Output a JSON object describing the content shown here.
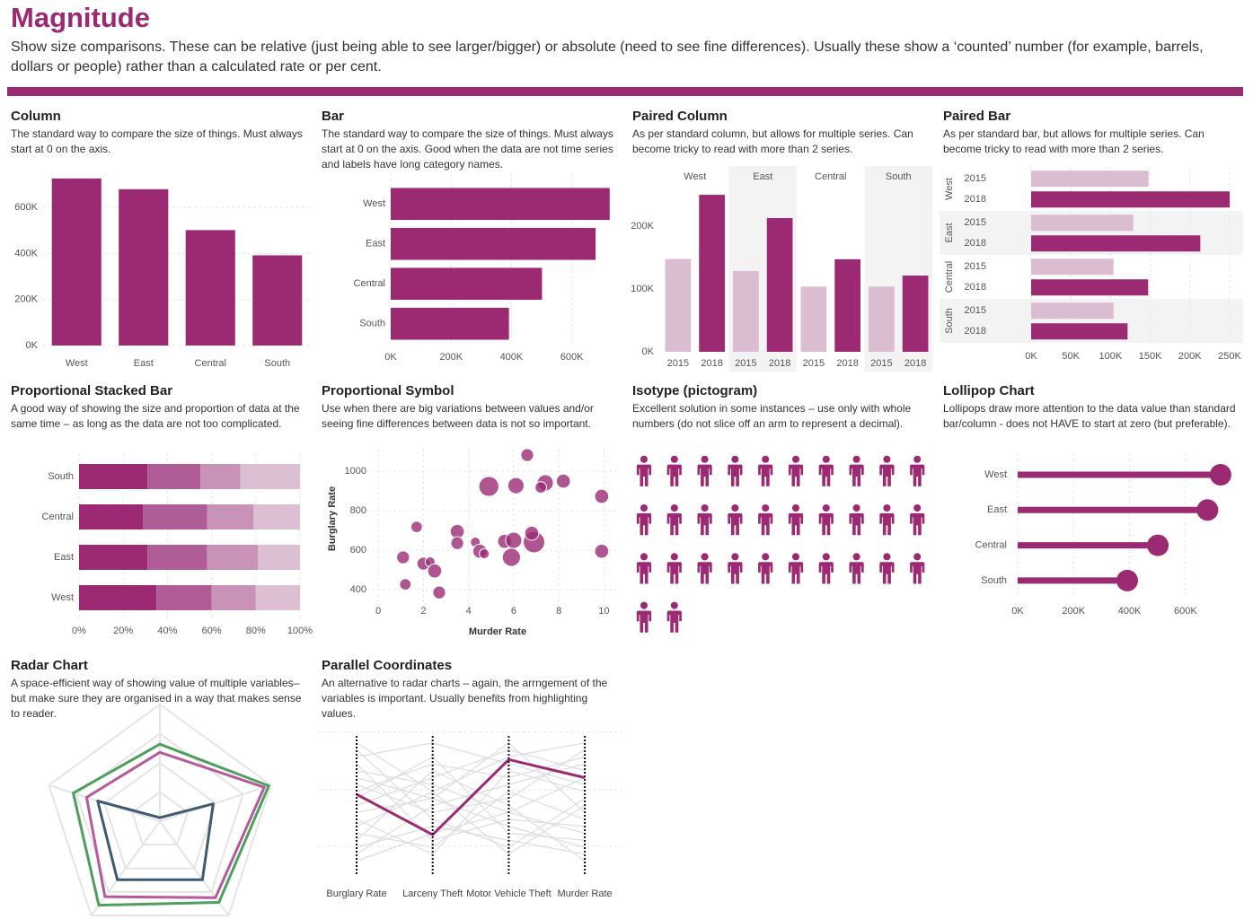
{
  "header": {
    "title": "Magnitude",
    "description": "Show size comparisons. These can be relative (just being able to see larger/bigger) or absolute (need to see fine differences). Usually these show a ‘counted’ number (for example, barrels, dollars or people) rather than a calculated rate or per cent."
  },
  "chart_data": [
    {
      "type": "column",
      "title": "Column",
      "description": "The standard way to compare the size of things. Must always start at 0 on the axis.",
      "categories": [
        "West",
        "East",
        "Central",
        "South"
      ],
      "values": [
        725458,
        678781,
        501240,
        391722
      ],
      "color": "#9b2a73",
      "ylim": [
        0,
        760000
      ],
      "yticks": [
        {
          "value": 0,
          "label": "0K"
        },
        {
          "value": 200000,
          "label": "200K"
        },
        {
          "value": 400000,
          "label": "400K"
        },
        {
          "value": 600000,
          "label": "600K"
        }
      ],
      "grid": true
    },
    {
      "type": "bar",
      "title": "Bar",
      "description": "The standard way to compare the size of things. Must always start at 0 on the axis. Good when the data are not time series and labels have long category names.",
      "categories": [
        "West",
        "East",
        "Central",
        "South"
      ],
      "values": [
        725458,
        678781,
        501240,
        391722
      ],
      "color": "#9b2a73",
      "xlim": [
        0,
        735000
      ],
      "xticks": [
        {
          "value": 0,
          "label": "0K"
        },
        {
          "value": 200000,
          "label": "200K"
        },
        {
          "value": 400000,
          "label": "400K"
        },
        {
          "value": 600000,
          "label": "600K"
        }
      ],
      "grid": true
    },
    {
      "type": "paired_column",
      "title": "Paired Column",
      "description": "As per standard column, but allows for multiple series. Can become tricky to read with more than 2 series.",
      "categories": [
        "West",
        "East",
        "Central",
        "South"
      ],
      "series": [
        {
          "name": "2015",
          "color": "#dbbdd1",
          "values": [
            147883,
            128680,
            103838,
            103846
          ]
        },
        {
          "name": "2018",
          "color": "#9b2a73",
          "values": [
            250128,
            213082,
            147429,
            121448
          ]
        }
      ],
      "ylim": [
        0,
        296000
      ],
      "yticks": [
        {
          "value": 0,
          "label": "0K"
        },
        {
          "value": 100000,
          "label": "100K"
        },
        {
          "value": 200000,
          "label": "200K"
        }
      ]
    },
    {
      "type": "paired_bar",
      "title": "Paired Bar",
      "description": "As per standard bar, but allows for multiple series. Can become tricky to read with more than 2 series.",
      "categories": [
        "West",
        "East",
        "Central",
        "South"
      ],
      "series": [
        {
          "name": "2015",
          "color": "#dbbdd1",
          "values": [
            147883,
            128680,
            103838,
            103846
          ]
        },
        {
          "name": "2018",
          "color": "#9b2a73",
          "values": [
            250128,
            213082,
            147429,
            121448
          ]
        }
      ],
      "xlim": [
        0,
        267000
      ],
      "xticks": [
        {
          "value": 0,
          "label": "0K"
        },
        {
          "value": 50000,
          "label": "50K"
        },
        {
          "value": 100000,
          "label": "100K"
        },
        {
          "value": 150000,
          "label": "150K"
        },
        {
          "value": 200000,
          "label": "200K"
        },
        {
          "value": 250000,
          "label": "250K"
        }
      ],
      "grid": true
    },
    {
      "type": "proportional_stacked_bar",
      "title": "Proportional Stacked Bar",
      "description": "A good way of showing the size and proportion of data at the same time – as long as the data are not too complicated.",
      "categories": [
        "South",
        "Central",
        "East",
        "West"
      ],
      "series": [
        {
          "color": "#9b2a73",
          "values": [
            31,
            29,
            31,
            35
          ]
        },
        {
          "color": "#b05c96",
          "values": [
            24,
            29,
            27,
            25
          ]
        },
        {
          "color": "#c893b6",
          "values": [
            18,
            21,
            23,
            20
          ]
        },
        {
          "color": "#dcbfd2",
          "values": [
            27,
            21,
            19,
            20
          ]
        }
      ],
      "xlim": [
        0,
        100
      ],
      "xticks": [
        {
          "value": 0,
          "label": "0%"
        },
        {
          "value": 20,
          "label": "20%"
        },
        {
          "value": 40,
          "label": "40%"
        },
        {
          "value": 60,
          "label": "60%"
        },
        {
          "value": 80,
          "label": "80%"
        },
        {
          "value": 100,
          "label": "100%"
        }
      ],
      "grid": true
    },
    {
      "type": "bubble",
      "title": "Proportional Symbol",
      "description": "Use when there are big variations between values and/or seeing fine differences between data is not so important.",
      "x_label": "Murder Rate",
      "y_label": "Burglary Rate",
      "color": "#9b2a73",
      "x": [
        6.6,
        4.9,
        6.1,
        7.4,
        8.2,
        7.2,
        9.9,
        1.7,
        3.5,
        3.5,
        4.3,
        5.6,
        6.0,
        6.9,
        6.8,
        4.5,
        4.7,
        5.9,
        1.1,
        2.0,
        2.3,
        2.5,
        1.2,
        2.7,
        9.9
      ],
      "y": [
        1082,
        923,
        927,
        941,
        950,
        918,
        873,
        718,
        695,
        636,
        641,
        645,
        650,
        641,
        686,
        595,
        582,
        564,
        564,
        532,
        541,
        495,
        427,
        386,
        595
      ],
      "sizes": [
        5,
        12,
        8,
        8,
        6,
        4,
        6,
        4,
        6,
        5,
        3,
        6,
        8,
        14,
        6,
        6,
        3,
        10,
        5,
        5,
        3,
        6,
        4,
        5,
        6
      ],
      "xlim": [
        -1,
        10.7
      ],
      "ylim": [
        314,
        1114
      ],
      "xticks": [
        0,
        2,
        4,
        6,
        8,
        10
      ],
      "yticks": [
        400,
        600,
        800,
        1000
      ],
      "grid": true
    },
    {
      "type": "isotype",
      "title": "Isotype (pictogram)",
      "description": "Excellent solution in some instances – use only with whole numbers (do not slice off an arm to represent a decimal).",
      "value": 32,
      "color": "#9b2a73"
    },
    {
      "type": "lollipop",
      "title": "Lollipop Chart",
      "description": "Lollipops draw more attention to the data value than standard bar/column - does not HAVE to start at zero (but preferable).",
      "categories": [
        "West",
        "East",
        "Central",
        "South"
      ],
      "values": [
        725458,
        678781,
        501240,
        391722
      ],
      "color": "#9b2a73",
      "xlim": [
        0,
        790000
      ],
      "xticks": [
        {
          "value": 0,
          "label": "0K"
        },
        {
          "value": 200000,
          "label": "200K"
        },
        {
          "value": 400000,
          "label": "400K"
        },
        {
          "value": 600000,
          "label": "600K"
        }
      ],
      "grid": true
    },
    {
      "type": "radar",
      "title": "Radar Chart",
      "description": "A space-efficient way of showing value of multiple variables– but make sure they are organised in a way that makes sense to reader.",
      "series": [
        {
          "color": "#4e9f5e",
          "values": [
            66,
            98,
            86,
            89,
            78
          ]
        },
        {
          "color": "#b75a9b",
          "values": [
            59,
            94,
            81,
            80,
            66
          ]
        },
        {
          "color": "#3f5a73",
          "values": [
            3,
            48,
            62,
            62,
            56
          ]
        }
      ],
      "rlim": [
        0,
        100
      ],
      "rticks": [
        25,
        50,
        75,
        100
      ],
      "grid": true
    },
    {
      "type": "parallel",
      "title": "Parallel Coordinates",
      "description": "An alternative to radar charts – again, the arrngement of the variables is important. Usually benefits from highlighting values.",
      "dimensions": [
        "Burglary Rate",
        "Larceny Theft",
        "Motor Vehicle Theft",
        "Murder Rate"
      ],
      "ylim": [
        0,
        100
      ],
      "series": [
        {
          "color": "#dcdce2",
          "values": [
            90,
            40,
            20,
            55
          ]
        },
        {
          "color": "#dcdce2",
          "values": [
            75,
            65,
            45,
            30
          ]
        },
        {
          "color": "#dcdce2",
          "values": [
            60,
            80,
            70,
            85
          ]
        },
        {
          "color": "#dcdce2",
          "values": [
            45,
            55,
            35,
            20
          ]
        },
        {
          "color": "#dcdce2",
          "values": [
            30,
            20,
            60,
            40
          ]
        },
        {
          "color": "#dcdce2",
          "values": [
            85,
            95,
            80,
            65
          ]
        },
        {
          "color": "#dcdce2",
          "values": [
            20,
            35,
            25,
            15
          ]
        },
        {
          "color": "#dcdce2",
          "values": [
            50,
            70,
            90,
            75
          ]
        },
        {
          "color": "#dcdce2",
          "values": [
            65,
            45,
            55,
            90
          ]
        },
        {
          "color": "#dcdce2",
          "values": [
            35,
            60,
            15,
            50
          ]
        },
        {
          "color": "#dcdce2",
          "values": [
            80,
            25,
            40,
            35
          ]
        },
        {
          "color": "#dcdce2",
          "values": [
            15,
            50,
            65,
            80
          ]
        },
        {
          "color": "#dcdce2",
          "values": [
            55,
            85,
            30,
            25
          ]
        },
        {
          "color": "#dcdce2",
          "values": [
            40,
            15,
            75,
            60
          ]
        },
        {
          "color": "#dcdce2",
          "values": [
            70,
            55,
            95,
            45
          ]
        },
        {
          "color": "#dcdce2",
          "values": [
            25,
            75,
            50,
            10
          ]
        },
        {
          "color": "#dcdce2",
          "values": [
            95,
            60,
            85,
            95
          ]
        },
        {
          "color": "#dcdce2",
          "values": [
            10,
            30,
            45,
            70
          ]
        },
        {
          "color": "#9b2a73",
          "values": [
            58,
            29,
            83,
            70
          ]
        }
      ]
    }
  ]
}
